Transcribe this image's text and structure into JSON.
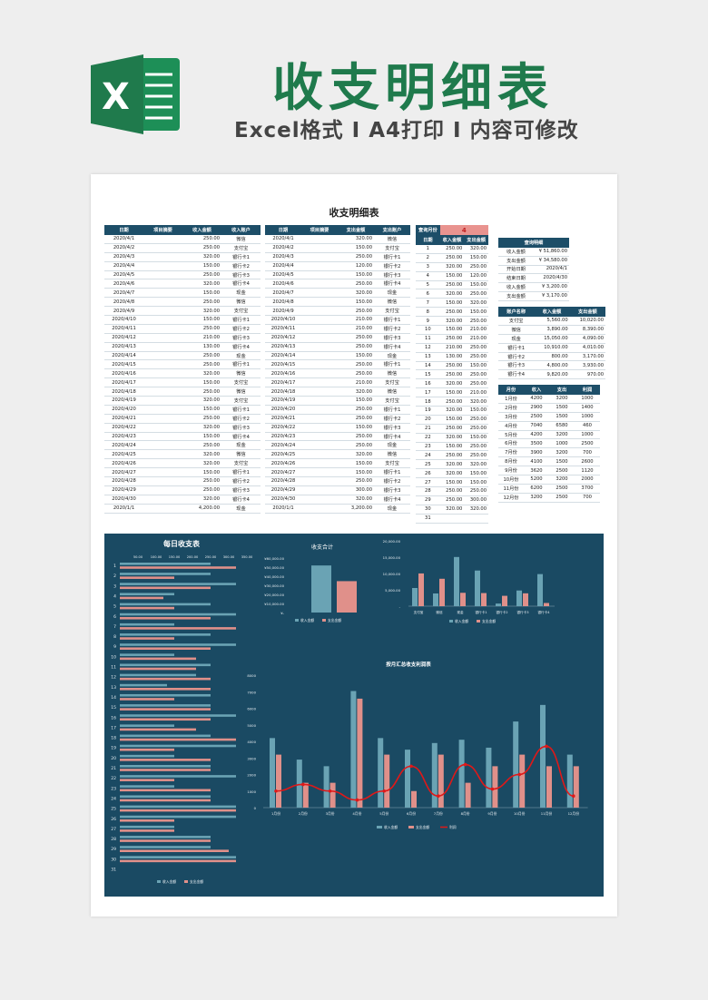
{
  "header": {
    "title": "收支明细表",
    "subtitle": "Excel格式 I A4打印 I 内容可修改"
  },
  "sheet": {
    "title": "收支明细表"
  },
  "income_table": {
    "headers": [
      "日期",
      "项目摘要",
      "收入金额",
      "收入账户"
    ],
    "rows": [
      [
        "2020/4/1",
        "",
        "250.00",
        "微信"
      ],
      [
        "2020/4/2",
        "",
        "250.00",
        "支付宝"
      ],
      [
        "2020/4/3",
        "",
        "320.00",
        "银行卡1"
      ],
      [
        "2020/4/4",
        "",
        "150.00",
        "银行卡2"
      ],
      [
        "2020/4/5",
        "",
        "250.00",
        "银行卡3"
      ],
      [
        "2020/4/6",
        "",
        "320.00",
        "银行卡4"
      ],
      [
        "2020/4/7",
        "",
        "150.00",
        "现金"
      ],
      [
        "2020/4/8",
        "",
        "250.00",
        "微信"
      ],
      [
        "2020/4/9",
        "",
        "320.00",
        "支付宝"
      ],
      [
        "2020/4/10",
        "",
        "150.00",
        "银行卡1"
      ],
      [
        "2020/4/11",
        "",
        "250.00",
        "银行卡2"
      ],
      [
        "2020/4/12",
        "",
        "210.00",
        "银行卡3"
      ],
      [
        "2020/4/13",
        "",
        "130.00",
        "银行卡4"
      ],
      [
        "2020/4/14",
        "",
        "250.00",
        "现金"
      ],
      [
        "2020/4/15",
        "",
        "250.00",
        "银行卡1"
      ],
      [
        "2020/4/16",
        "",
        "320.00",
        "微信"
      ],
      [
        "2020/4/17",
        "",
        "150.00",
        "支付宝"
      ],
      [
        "2020/4/18",
        "",
        "250.00",
        "微信"
      ],
      [
        "2020/4/19",
        "",
        "320.00",
        "支付宝"
      ],
      [
        "2020/4/20",
        "",
        "150.00",
        "银行卡1"
      ],
      [
        "2020/4/21",
        "",
        "250.00",
        "银行卡2"
      ],
      [
        "2020/4/22",
        "",
        "320.00",
        "银行卡3"
      ],
      [
        "2020/4/23",
        "",
        "150.00",
        "银行卡4"
      ],
      [
        "2020/4/24",
        "",
        "250.00",
        "现金"
      ],
      [
        "2020/4/25",
        "",
        "320.00",
        "微信"
      ],
      [
        "2020/4/26",
        "",
        "320.00",
        "支付宝"
      ],
      [
        "2020/4/27",
        "",
        "150.00",
        "银行卡1"
      ],
      [
        "2020/4/28",
        "",
        "250.00",
        "银行卡2"
      ],
      [
        "2020/4/29",
        "",
        "250.00",
        "银行卡3"
      ],
      [
        "2020/4/30",
        "",
        "320.00",
        "银行卡4"
      ],
      [
        "2020/1/1",
        "",
        "4,200.00",
        "现金"
      ]
    ]
  },
  "expense_table": {
    "headers": [
      "日期",
      "项目摘要",
      "支出金额",
      "支出账户"
    ],
    "rows": [
      [
        "2020/4/1",
        "",
        "320.00",
        "微信"
      ],
      [
        "2020/4/2",
        "",
        "150.00",
        "支付宝"
      ],
      [
        "2020/4/3",
        "",
        "250.00",
        "银行卡1"
      ],
      [
        "2020/4/4",
        "",
        "120.00",
        "银行卡2"
      ],
      [
        "2020/4/5",
        "",
        "150.00",
        "银行卡3"
      ],
      [
        "2020/4/6",
        "",
        "250.00",
        "银行卡4"
      ],
      [
        "2020/4/7",
        "",
        "320.00",
        "现金"
      ],
      [
        "2020/4/8",
        "",
        "150.00",
        "微信"
      ],
      [
        "2020/4/9",
        "",
        "250.00",
        "支付宝"
      ],
      [
        "2020/4/10",
        "",
        "210.00",
        "银行卡1"
      ],
      [
        "2020/4/11",
        "",
        "210.00",
        "银行卡2"
      ],
      [
        "2020/4/12",
        "",
        "250.00",
        "银行卡3"
      ],
      [
        "2020/4/13",
        "",
        "250.00",
        "银行卡4"
      ],
      [
        "2020/4/14",
        "",
        "150.00",
        "现金"
      ],
      [
        "2020/4/15",
        "",
        "250.00",
        "银行卡1"
      ],
      [
        "2020/4/16",
        "",
        "250.00",
        "微信"
      ],
      [
        "2020/4/17",
        "",
        "210.00",
        "支付宝"
      ],
      [
        "2020/4/18",
        "",
        "320.00",
        "微信"
      ],
      [
        "2020/4/19",
        "",
        "150.00",
        "支付宝"
      ],
      [
        "2020/4/20",
        "",
        "250.00",
        "银行卡1"
      ],
      [
        "2020/4/21",
        "",
        "250.00",
        "银行卡2"
      ],
      [
        "2020/4/22",
        "",
        "150.00",
        "银行卡3"
      ],
      [
        "2020/4/23",
        "",
        "250.00",
        "银行卡4"
      ],
      [
        "2020/4/24",
        "",
        "250.00",
        "现金"
      ],
      [
        "2020/4/25",
        "",
        "320.00",
        "微信"
      ],
      [
        "2020/4/26",
        "",
        "150.00",
        "支付宝"
      ],
      [
        "2020/4/27",
        "",
        "150.00",
        "银行卡1"
      ],
      [
        "2020/4/28",
        "",
        "250.00",
        "银行卡2"
      ],
      [
        "2020/4/29",
        "",
        "300.00",
        "银行卡3"
      ],
      [
        "2020/4/30",
        "",
        "320.00",
        "银行卡4"
      ],
      [
        "2020/1/1",
        "",
        "3,200.00",
        "现金"
      ]
    ]
  },
  "month_query": {
    "label": "查询月份",
    "value": "4",
    "headers": [
      "日期",
      "收入金额",
      "支出金额"
    ],
    "rows": [
      [
        "1",
        "250.00",
        "320.00"
      ],
      [
        "2",
        "250.00",
        "150.00"
      ],
      [
        "3",
        "320.00",
        "250.00"
      ],
      [
        "4",
        "150.00",
        "120.00"
      ],
      [
        "5",
        "250.00",
        "150.00"
      ],
      [
        "6",
        "320.00",
        "250.00"
      ],
      [
        "7",
        "150.00",
        "320.00"
      ],
      [
        "8",
        "250.00",
        "150.00"
      ],
      [
        "9",
        "320.00",
        "250.00"
      ],
      [
        "10",
        "150.00",
        "210.00"
      ],
      [
        "11",
        "250.00",
        "210.00"
      ],
      [
        "12",
        "210.00",
        "250.00"
      ],
      [
        "13",
        "130.00",
        "250.00"
      ],
      [
        "14",
        "250.00",
        "150.00"
      ],
      [
        "15",
        "250.00",
        "250.00"
      ],
      [
        "16",
        "320.00",
        "250.00"
      ],
      [
        "17",
        "150.00",
        "210.00"
      ],
      [
        "18",
        "250.00",
        "320.00"
      ],
      [
        "19",
        "320.00",
        "150.00"
      ],
      [
        "20",
        "150.00",
        "250.00"
      ],
      [
        "21",
        "250.00",
        "250.00"
      ],
      [
        "22",
        "320.00",
        "150.00"
      ],
      [
        "23",
        "150.00",
        "250.00"
      ],
      [
        "24",
        "250.00",
        "250.00"
      ],
      [
        "25",
        "320.00",
        "320.00"
      ],
      [
        "26",
        "320.00",
        "150.00"
      ],
      [
        "27",
        "150.00",
        "150.00"
      ],
      [
        "28",
        "250.00",
        "250.00"
      ],
      [
        "29",
        "250.00",
        "300.00"
      ],
      [
        "30",
        "320.00",
        "320.00"
      ],
      [
        "31",
        "",
        ""
      ]
    ]
  },
  "query_result": {
    "header": "查询明细",
    "rows": [
      [
        "收入金额",
        "¥ 51,860.00"
      ],
      [
        "支出金额",
        "¥ 34,580.00"
      ]
    ]
  },
  "date_range": {
    "rows": [
      [
        "开始日期",
        "2020/4/1"
      ],
      [
        "结束日期",
        "2020/4/30"
      ],
      [
        "收入金额",
        "¥ 3,200.00"
      ],
      [
        "支出金额",
        "¥ 3,170.00"
      ]
    ]
  },
  "account_table": {
    "headers": [
      "账户名称",
      "收入金额",
      "支出金额"
    ],
    "rows": [
      [
        "支付宝",
        "5,560.00",
        "10,020.00"
      ],
      [
        "微信",
        "3,890.00",
        "8,390.00"
      ],
      [
        "现金",
        "15,050.00",
        "4,090.00"
      ],
      [
        "银行卡1",
        "10,910.00",
        "4,010.00"
      ],
      [
        "银行卡2",
        "800.00",
        "3,170.00"
      ],
      [
        "银行卡3",
        "4,800.00",
        "3,930.00"
      ],
      [
        "银行卡4",
        "9,820.00",
        "970.00"
      ]
    ]
  },
  "monthly_table": {
    "headers": [
      "月份",
      "收入",
      "支出",
      "利润"
    ],
    "rows": [
      [
        "1月份",
        "4200",
        "3200",
        "1000"
      ],
      [
        "2月份",
        "2900",
        "1500",
        "1400"
      ],
      [
        "3月份",
        "2500",
        "1500",
        "1000"
      ],
      [
        "4月份",
        "7040",
        "6580",
        "460"
      ],
      [
        "5月份",
        "4200",
        "3200",
        "1000"
      ],
      [
        "6月份",
        "3500",
        "1000",
        "2500"
      ],
      [
        "7月份",
        "3900",
        "3200",
        "700"
      ],
      [
        "8月份",
        "4100",
        "1500",
        "2600"
      ],
      [
        "9月份",
        "3620",
        "2500",
        "1120"
      ],
      [
        "10月份",
        "5200",
        "3200",
        "2000"
      ],
      [
        "11月份",
        "6200",
        "2500",
        "3700"
      ],
      [
        "12月份",
        "3200",
        "2500",
        "700"
      ]
    ]
  },
  "charts": {
    "daily": {
      "title": "每日收支表",
      "ticks": [
        "50.00",
        "100.00",
        "150.00",
        "200.00",
        "250.00",
        "300.00",
        "350.00"
      ],
      "legend": [
        "收入金额",
        "支出金额"
      ]
    },
    "total": {
      "title": "收支合计",
      "ticks": [
        "¥60,000.00",
        "¥50,000.00",
        "¥40,000.00",
        "¥30,000.00",
        "¥20,000.00",
        "¥10,000.00",
        "¥-"
      ],
      "legend": [
        "收入金额",
        "支出金额"
      ]
    },
    "account": {
      "ticks": [
        "20,000.00",
        "15,000.00",
        "10,000.00",
        "5,000.00",
        "-"
      ],
      "legend": [
        "收入金额",
        "支出金额"
      ]
    },
    "monthly": {
      "title": "按月汇总收支利润表",
      "ticks": [
        "8000",
        "7000",
        "6000",
        "5000",
        "4000",
        "3000",
        "2000",
        "1000",
        "0"
      ],
      "legend": [
        "收入金额",
        "支出金额",
        "利润"
      ]
    }
  },
  "colors": {
    "header": "#1d4e68",
    "income": "#6aa3b4",
    "expense": "#e0908a",
    "profit": "#e01818",
    "dash_bg": "#1a4a63"
  },
  "chart_data": [
    {
      "type": "bar",
      "title": "每日收支表",
      "categories": [
        "1",
        "2",
        "3",
        "4",
        "5",
        "6",
        "7",
        "8",
        "9",
        "10",
        "11",
        "12",
        "13",
        "14",
        "15",
        "16",
        "17",
        "18",
        "19",
        "20",
        "21",
        "22",
        "23",
        "24",
        "25",
        "26",
        "27",
        "28",
        "29",
        "30",
        "31"
      ],
      "series": [
        {
          "name": "收入金额",
          "values": [
            250,
            250,
            320,
            150,
            250,
            320,
            150,
            250,
            320,
            150,
            250,
            210,
            130,
            250,
            250,
            320,
            150,
            250,
            320,
            150,
            250,
            320,
            150,
            250,
            320,
            320,
            150,
            250,
            250,
            320,
            0
          ]
        },
        {
          "name": "支出金额",
          "values": [
            320,
            150,
            250,
            120,
            150,
            250,
            320,
            150,
            250,
            210,
            210,
            250,
            250,
            150,
            250,
            250,
            210,
            320,
            150,
            250,
            250,
            150,
            250,
            250,
            320,
            150,
            150,
            250,
            300,
            320,
            0
          ]
        }
      ],
      "xlim": [
        0,
        350
      ]
    },
    {
      "type": "bar",
      "title": "收支合计",
      "categories": [
        ""
      ],
      "series": [
        {
          "name": "收入金额",
          "values": [
            51860
          ]
        },
        {
          "name": "支出金额",
          "values": [
            34580
          ]
        }
      ],
      "ylim": [
        0,
        60000
      ]
    },
    {
      "type": "bar",
      "categories": [
        "支付宝",
        "微信",
        "现金",
        "银行卡1",
        "银行卡2",
        "银行卡3",
        "银行卡4"
      ],
      "series": [
        {
          "name": "收入金额",
          "values": [
            5560,
            3890,
            15050,
            10910,
            800,
            4800,
            9820
          ]
        },
        {
          "name": "支出金额",
          "values": [
            10020,
            8390,
            4090,
            4010,
            3170,
            3930,
            970
          ]
        }
      ],
      "ylim": [
        0,
        20000
      ]
    },
    {
      "type": "bar",
      "title": "按月汇总收支利润表",
      "categories": [
        "1月份",
        "2月份",
        "3月份",
        "4月份",
        "5月份",
        "6月份",
        "7月份",
        "8月份",
        "9月份",
        "10月份",
        "11月份",
        "12月份"
      ],
      "series": [
        {
          "name": "收入金额",
          "values": [
            4200,
            2900,
            2500,
            7040,
            4200,
            3500,
            3900,
            4100,
            3620,
            5200,
            6200,
            3200
          ]
        },
        {
          "name": "支出金额",
          "values": [
            3200,
            1500,
            1500,
            6580,
            3200,
            1000,
            3200,
            1500,
            2500,
            3200,
            2500,
            2500
          ]
        },
        {
          "name": "利润",
          "values": [
            1000,
            1400,
            1000,
            460,
            1000,
            2500,
            700,
            2600,
            1120,
            2000,
            3700,
            700
          ]
        }
      ],
      "ylim": [
        0,
        8000
      ]
    }
  ]
}
